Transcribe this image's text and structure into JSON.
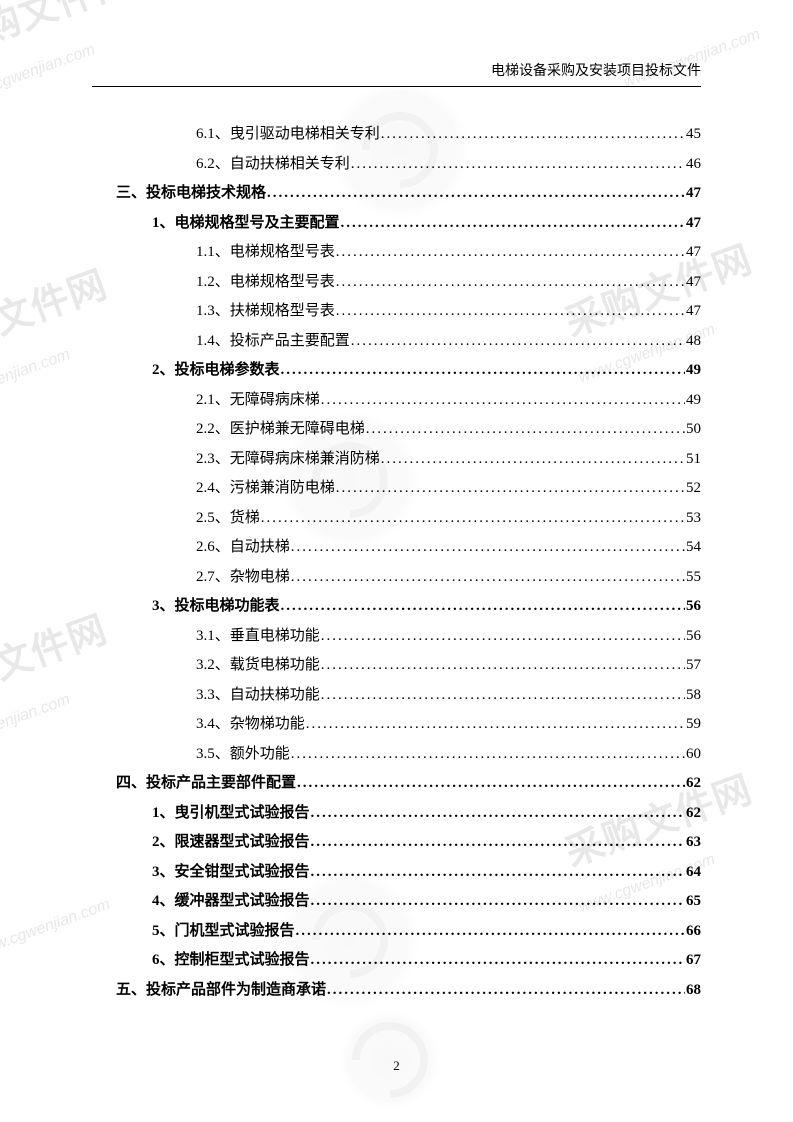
{
  "header": "电梯设备采购及安装项目投标文件",
  "pageNumber": "2",
  "toc": [
    {
      "level": 2,
      "bold": false,
      "label": "6.1、曳引驱动电梯相关专利",
      "page": "45"
    },
    {
      "level": 2,
      "bold": false,
      "label": "6.2、自动扶梯相关专利",
      "page": "46"
    },
    {
      "level": 0,
      "bold": true,
      "label": "三、投标电梯技术规格",
      "page": "47"
    },
    {
      "level": 1,
      "bold": true,
      "label": "1、电梯规格型号及主要配置",
      "page": "47"
    },
    {
      "level": 2,
      "bold": false,
      "label": "1.1、电梯规格型号表",
      "page": "47"
    },
    {
      "level": 2,
      "bold": false,
      "label": "1.2、电梯规格型号表",
      "page": "47"
    },
    {
      "level": 2,
      "bold": false,
      "label": "1.3、扶梯规格型号表",
      "page": "47"
    },
    {
      "level": 2,
      "bold": false,
      "label": "1.4、投标产品主要配置",
      "page": "48"
    },
    {
      "level": 1,
      "bold": true,
      "label": "2、投标电梯参数表",
      "page": "49"
    },
    {
      "level": 2,
      "bold": false,
      "label": "2.1、无障碍病床梯",
      "page": "49"
    },
    {
      "level": 2,
      "bold": false,
      "label": "2.2、医护梯兼无障碍电梯",
      "page": "50"
    },
    {
      "level": 2,
      "bold": false,
      "label": "2.3、无障碍病床梯兼消防梯",
      "page": "51"
    },
    {
      "level": 2,
      "bold": false,
      "label": "2.4、污梯兼消防电梯",
      "page": "52"
    },
    {
      "level": 2,
      "bold": false,
      "label": "2.5、货梯",
      "page": "53"
    },
    {
      "level": 2,
      "bold": false,
      "label": "2.6、自动扶梯",
      "page": "54"
    },
    {
      "level": 2,
      "bold": false,
      "label": "2.7、杂物电梯",
      "page": "55"
    },
    {
      "level": 1,
      "bold": true,
      "label": "3、投标电梯功能表",
      "page": "56"
    },
    {
      "level": 2,
      "bold": false,
      "label": "3.1、垂直电梯功能",
      "page": "56"
    },
    {
      "level": 2,
      "bold": false,
      "label": "3.2、载货电梯功能",
      "page": "57"
    },
    {
      "level": 2,
      "bold": false,
      "label": "3.3、自动扶梯功能",
      "page": "58"
    },
    {
      "level": 2,
      "bold": false,
      "label": "3.4、杂物梯功能",
      "page": "59"
    },
    {
      "level": 2,
      "bold": false,
      "label": "3.5、额外功能",
      "page": "60"
    },
    {
      "level": 0,
      "bold": true,
      "label": "四、投标产品主要部件配置",
      "page": "62"
    },
    {
      "level": 1,
      "bold": true,
      "label": "1、曳引机型式试验报告",
      "page": "62"
    },
    {
      "level": 1,
      "bold": true,
      "label": "2、限速器型式试验报告",
      "page": "63"
    },
    {
      "level": 1,
      "bold": true,
      "label": "3、安全钳型式试验报告",
      "page": "64"
    },
    {
      "level": 1,
      "bold": true,
      "label": "4、缓冲器型式试验报告",
      "page": "65"
    },
    {
      "level": 1,
      "bold": true,
      "label": "5、门机型式试验报告",
      "page": "66"
    },
    {
      "level": 1,
      "bold": true,
      "label": "6、控制柜型式试验报告",
      "page": "67"
    },
    {
      "level": 0,
      "bold": true,
      "label": "五、投标产品部件为制造商承诺",
      "page": "68"
    }
  ],
  "watermarks": {
    "brand": "采购文件网",
    "url": "www.cgwenjian.com"
  }
}
